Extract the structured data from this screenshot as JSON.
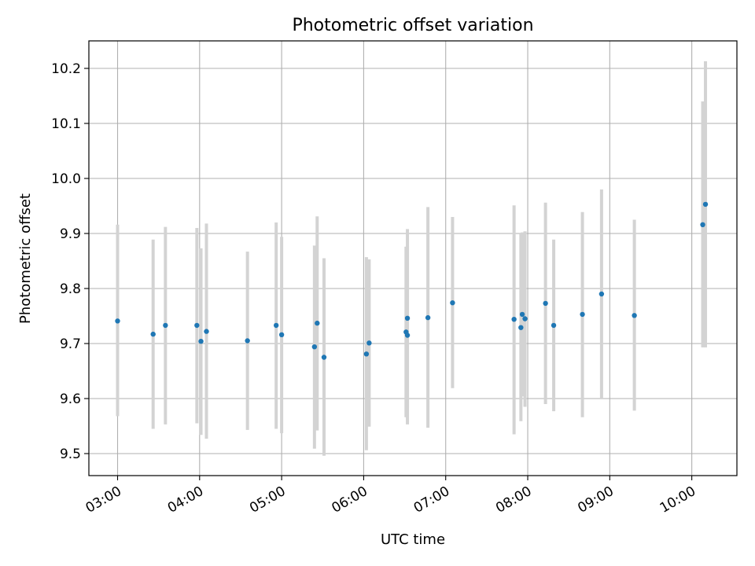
{
  "chart_data": {
    "type": "scatter",
    "title": "Photometric offset variation",
    "xlabel": "UTC time",
    "ylabel": "Photometric offset",
    "x_tick_labels": [
      "03:00",
      "04:00",
      "05:00",
      "06:00",
      "07:00",
      "08:00",
      "09:00",
      "10:00"
    ],
    "y_tick_labels": [
      "9.5",
      "9.6",
      "9.7",
      "9.8",
      "9.9",
      "10.0",
      "10.1",
      "10.2"
    ],
    "xlim": [
      "02:39",
      "10:33"
    ],
    "ylim": [
      9.46,
      10.25
    ],
    "grid": true,
    "legend": "none",
    "colors": {
      "point": "#1f77b4",
      "errorbar": "#d3d3d3",
      "grid": "#b0b0b0"
    },
    "points": [
      {
        "x": "03:00",
        "y": 9.741,
        "ylow": 9.568,
        "yhigh": 9.916
      },
      {
        "x": "03:26",
        "y": 9.717,
        "ylow": 9.545,
        "yhigh": 9.889
      },
      {
        "x": "03:35",
        "y": 9.733,
        "ylow": 9.553,
        "yhigh": 9.912
      },
      {
        "x": "03:58",
        "y": 9.733,
        "ylow": 9.555,
        "yhigh": 9.91
      },
      {
        "x": "04:01",
        "y": 9.704,
        "ylow": 9.534,
        "yhigh": 9.873
      },
      {
        "x": "04:05",
        "y": 9.722,
        "ylow": 9.527,
        "yhigh": 9.918
      },
      {
        "x": "04:35",
        "y": 9.705,
        "ylow": 9.543,
        "yhigh": 9.867
      },
      {
        "x": "04:56",
        "y": 9.733,
        "ylow": 9.545,
        "yhigh": 9.92
      },
      {
        "x": "05:00",
        "y": 9.716,
        "ylow": 9.537,
        "yhigh": 9.894
      },
      {
        "x": "05:24",
        "y": 9.694,
        "ylow": 9.509,
        "yhigh": 9.878
      },
      {
        "x": "05:26",
        "y": 9.737,
        "ylow": 9.542,
        "yhigh": 9.931
      },
      {
        "x": "05:31",
        "y": 9.675,
        "ylow": 9.496,
        "yhigh": 9.855
      },
      {
        "x": "06:02",
        "y": 9.681,
        "ylow": 9.506,
        "yhigh": 9.857
      },
      {
        "x": "06:04",
        "y": 9.701,
        "ylow": 9.549,
        "yhigh": 9.853
      },
      {
        "x": "06:31",
        "y": 9.721,
        "ylow": 9.566,
        "yhigh": 9.876
      },
      {
        "x": "06:32",
        "y": 9.715,
        "ylow": 9.553,
        "yhigh": 9.877
      },
      {
        "x": "06:32",
        "y": 9.746,
        "ylow": 9.583,
        "yhigh": 9.908
      },
      {
        "x": "06:47",
        "y": 9.747,
        "ylow": 9.547,
        "yhigh": 9.948
      },
      {
        "x": "07:05",
        "y": 9.774,
        "ylow": 9.619,
        "yhigh": 9.93
      },
      {
        "x": "07:50",
        "y": 9.744,
        "ylow": 9.535,
        "yhigh": 9.951
      },
      {
        "x": "07:55",
        "y": 9.729,
        "ylow": 9.559,
        "yhigh": 9.9
      },
      {
        "x": "07:56",
        "y": 9.753,
        "ylow": 9.604,
        "yhigh": 9.902
      },
      {
        "x": "07:58",
        "y": 9.745,
        "ylow": 9.585,
        "yhigh": 9.904
      },
      {
        "x": "08:13",
        "y": 9.773,
        "ylow": 9.59,
        "yhigh": 9.956
      },
      {
        "x": "08:19",
        "y": 9.733,
        "ylow": 9.577,
        "yhigh": 9.889
      },
      {
        "x": "08:40",
        "y": 9.753,
        "ylow": 9.566,
        "yhigh": 9.939
      },
      {
        "x": "08:54",
        "y": 9.79,
        "ylow": 9.6,
        "yhigh": 9.98
      },
      {
        "x": "09:18",
        "y": 9.751,
        "ylow": 9.578,
        "yhigh": 9.925
      },
      {
        "x": "10:08",
        "y": 9.916,
        "ylow": 9.693,
        "yhigh": 10.14
      },
      {
        "x": "10:10",
        "y": 9.953,
        "ylow": 9.693,
        "yhigh": 10.213
      }
    ]
  }
}
